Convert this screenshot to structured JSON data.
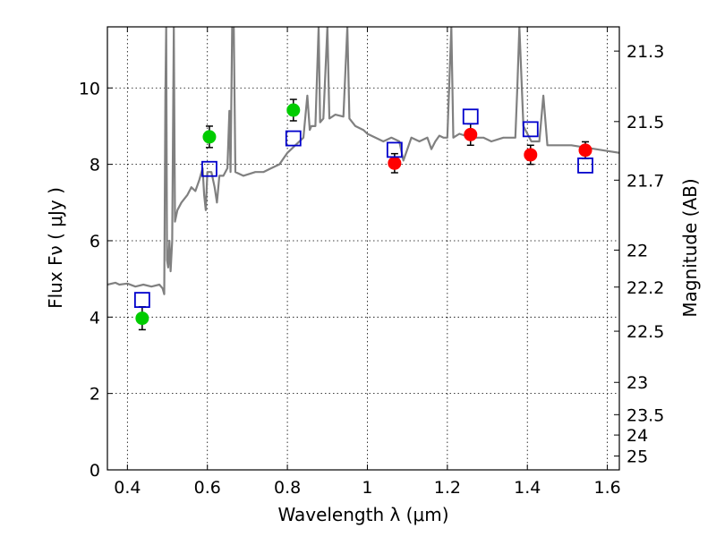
{
  "chart_data": {
    "type": "scatter",
    "xlabel": "Wavelength  λ (μm)",
    "ylabel": "Flux  Fν  ( μJy )",
    "y2label": "Magnitude (AB)",
    "xlim": [
      0.35,
      1.63
    ],
    "ylim": [
      0,
      11.6
    ],
    "grid": true,
    "legend": "none",
    "x_ticks": [
      {
        "value": 0.4,
        "label": "0.4"
      },
      {
        "value": 0.6,
        "label": "0.6"
      },
      {
        "value": 0.8,
        "label": "0.8"
      },
      {
        "value": 1.0,
        "label": "1"
      },
      {
        "value": 1.2,
        "label": "1.2"
      },
      {
        "value": 1.4,
        "label": "1.4"
      },
      {
        "value": 1.6,
        "label": "1.6"
      }
    ],
    "y_ticks": [
      {
        "value": 0,
        "label": "0"
      },
      {
        "value": 2,
        "label": "2"
      },
      {
        "value": 4,
        "label": "4"
      },
      {
        "value": 6,
        "label": "6"
      },
      {
        "value": 8,
        "label": "8"
      },
      {
        "value": 10,
        "label": "10"
      }
    ],
    "y2_ticks": [
      {
        "value": 21.3,
        "label": "21.3"
      },
      {
        "value": 21.5,
        "label": "21.5"
      },
      {
        "value": 21.7,
        "label": "21.7"
      },
      {
        "value": 22,
        "label": "22"
      },
      {
        "value": 22.2,
        "label": "22.2"
      },
      {
        "value": 22.5,
        "label": "22.5"
      },
      {
        "value": 23,
        "label": "23"
      },
      {
        "value": 23.5,
        "label": "23.5"
      },
      {
        "value": 24,
        "label": "24"
      },
      {
        "value": 25,
        "label": "25"
      }
    ],
    "series": [
      {
        "kind": "line",
        "color": "#808080",
        "points": [
          [
            0.35,
            4.85
          ],
          [
            0.37,
            4.9
          ],
          [
            0.38,
            4.85
          ],
          [
            0.4,
            4.88
          ],
          [
            0.42,
            4.8
          ],
          [
            0.44,
            4.85
          ],
          [
            0.46,
            4.8
          ],
          [
            0.48,
            4.85
          ],
          [
            0.488,
            4.75
          ],
          [
            0.492,
            4.6
          ],
          [
            0.495,
            9.8
          ],
          [
            0.497,
            11.6
          ],
          [
            0.499,
            5.5
          ],
          [
            0.502,
            5.3
          ],
          [
            0.505,
            6.0
          ],
          [
            0.508,
            5.2
          ],
          [
            0.512,
            6.0
          ],
          [
            0.516,
            11.6
          ],
          [
            0.519,
            6.5
          ],
          [
            0.525,
            6.8
          ],
          [
            0.535,
            7.0
          ],
          [
            0.55,
            7.2
          ],
          [
            0.56,
            7.4
          ],
          [
            0.57,
            7.3
          ],
          [
            0.58,
            7.6
          ],
          [
            0.588,
            7.9
          ],
          [
            0.592,
            7.2
          ],
          [
            0.596,
            6.8
          ],
          [
            0.6,
            7.8
          ],
          [
            0.61,
            7.8
          ],
          [
            0.618,
            7.4
          ],
          [
            0.624,
            7.0
          ],
          [
            0.63,
            7.7
          ],
          [
            0.64,
            7.7
          ],
          [
            0.65,
            7.9
          ],
          [
            0.655,
            9.4
          ],
          [
            0.658,
            7.8
          ],
          [
            0.662,
            11.6
          ],
          [
            0.666,
            11.6
          ],
          [
            0.67,
            7.8
          ],
          [
            0.69,
            7.7
          ],
          [
            0.72,
            7.8
          ],
          [
            0.74,
            7.8
          ],
          [
            0.76,
            7.9
          ],
          [
            0.78,
            8.0
          ],
          [
            0.8,
            8.3
          ],
          [
            0.82,
            8.5
          ],
          [
            0.84,
            8.7
          ],
          [
            0.85,
            9.8
          ],
          [
            0.856,
            8.9
          ],
          [
            0.86,
            9.0
          ],
          [
            0.87,
            9.0
          ],
          [
            0.878,
            11.6
          ],
          [
            0.882,
            9.1
          ],
          [
            0.89,
            9.2
          ],
          [
            0.9,
            11.6
          ],
          [
            0.905,
            9.2
          ],
          [
            0.92,
            9.3
          ],
          [
            0.94,
            9.25
          ],
          [
            0.95,
            11.6
          ],
          [
            0.955,
            9.2
          ],
          [
            0.97,
            9.0
          ],
          [
            0.99,
            8.9
          ],
          [
            1.0,
            8.8
          ],
          [
            1.02,
            8.7
          ],
          [
            1.04,
            8.6
          ],
          [
            1.06,
            8.7
          ],
          [
            1.08,
            8.6
          ],
          [
            1.09,
            8.1
          ],
          [
            1.1,
            8.4
          ],
          [
            1.11,
            8.7
          ],
          [
            1.13,
            8.6
          ],
          [
            1.15,
            8.7
          ],
          [
            1.16,
            8.4
          ],
          [
            1.17,
            8.6
          ],
          [
            1.18,
            8.75
          ],
          [
            1.19,
            8.7
          ],
          [
            1.2,
            8.7
          ],
          [
            1.21,
            11.6
          ],
          [
            1.215,
            8.7
          ],
          [
            1.23,
            8.8
          ],
          [
            1.26,
            8.7
          ],
          [
            1.29,
            8.7
          ],
          [
            1.31,
            8.6
          ],
          [
            1.34,
            8.7
          ],
          [
            1.37,
            8.7
          ],
          [
            1.375,
            10.0
          ],
          [
            1.38,
            11.6
          ],
          [
            1.39,
            9.0
          ],
          [
            1.41,
            8.6
          ],
          [
            1.43,
            8.6
          ],
          [
            1.44,
            9.8
          ],
          [
            1.45,
            8.5
          ],
          [
            1.47,
            8.5
          ],
          [
            1.49,
            8.5
          ],
          [
            1.51,
            8.5
          ],
          [
            1.54,
            8.45
          ],
          [
            1.57,
            8.4
          ],
          [
            1.6,
            8.35
          ],
          [
            1.63,
            8.3
          ]
        ]
      },
      {
        "kind": "points",
        "marker": "circle",
        "color": "#00cc00",
        "points": [
          {
            "x": 0.437,
            "y": 3.97,
            "err": 0.3
          },
          {
            "x": 0.605,
            "y": 8.72,
            "err": 0.28
          },
          {
            "x": 0.815,
            "y": 9.42,
            "err": 0.28
          }
        ]
      },
      {
        "kind": "points",
        "marker": "circle",
        "color": "#ff0000",
        "points": [
          {
            "x": 1.068,
            "y": 8.03,
            "err": 0.25
          },
          {
            "x": 1.258,
            "y": 8.78,
            "err": 0.28
          },
          {
            "x": 1.408,
            "y": 8.25,
            "err": 0.25
          },
          {
            "x": 1.545,
            "y": 8.37,
            "err": 0.22
          }
        ]
      },
      {
        "kind": "points",
        "marker": "square",
        "color": "#0000cc",
        "points": [
          {
            "x": 0.437,
            "y": 4.45
          },
          {
            "x": 0.605,
            "y": 7.88
          },
          {
            "x": 0.815,
            "y": 8.68
          },
          {
            "x": 1.068,
            "y": 8.38
          },
          {
            "x": 1.258,
            "y": 9.25
          },
          {
            "x": 1.408,
            "y": 8.92
          },
          {
            "x": 1.545,
            "y": 7.97
          }
        ]
      }
    ]
  }
}
